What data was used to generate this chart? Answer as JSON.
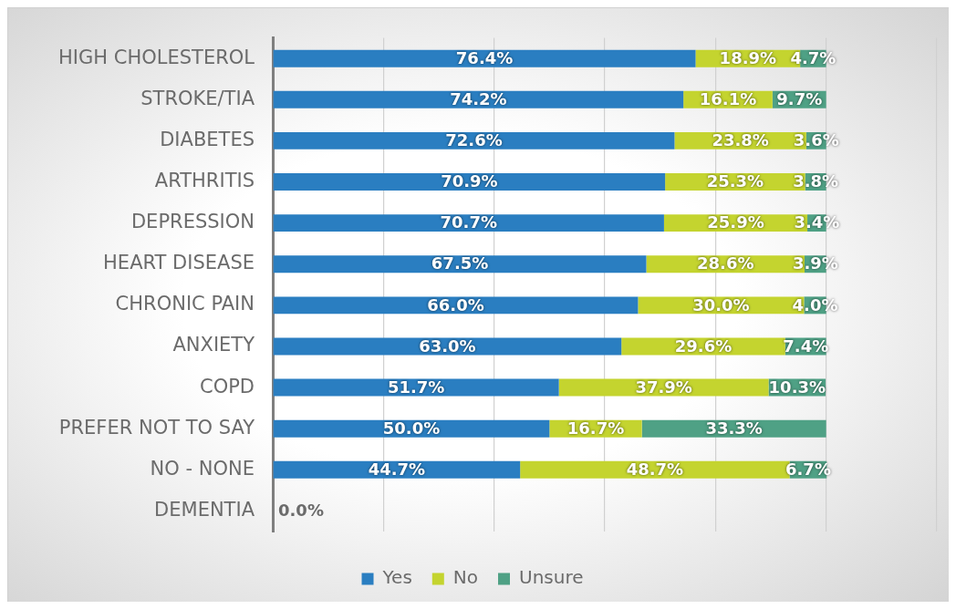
{
  "chart_data": {
    "type": "bar",
    "orientation": "horizontal",
    "stacked": true,
    "categories": [
      "HIGH CHOLESTEROL",
      "STROKE/TIA",
      "DIABETES",
      "ARTHRITIS",
      "DEPRESSION",
      "HEART DISEASE",
      "CHRONIC PAIN",
      "ANXIETY",
      "COPD",
      "PREFER NOT TO SAY",
      "NO - NONE",
      "DEMENTIA"
    ],
    "series": [
      {
        "name": "Yes",
        "color": "#2a7ec1",
        "values": [
          76.4,
          74.2,
          72.6,
          70.9,
          70.7,
          67.5,
          66.0,
          63.0,
          51.7,
          50.0,
          44.7,
          0
        ],
        "value_labels": [
          "76.4%",
          "74.2%",
          "72.6%",
          "70.9%",
          "70.7%",
          "67.5%",
          "66.0%",
          "63.0%",
          "51.7%",
          "50.0%",
          "44.7%",
          "0.0%"
        ]
      },
      {
        "name": "No",
        "color": "#c4d42f",
        "values": [
          18.9,
          16.1,
          23.8,
          25.3,
          25.9,
          28.6,
          30.0,
          29.6,
          37.9,
          16.7,
          48.7,
          null
        ],
        "value_labels": [
          "18.9%",
          "16.1%",
          "23.8%",
          "25.3%",
          "25.9%",
          "28.6%",
          "30.0%",
          "29.6%",
          "37.9%",
          "16.7%",
          "48.7%",
          null
        ]
      },
      {
        "name": "Unsure",
        "color": "#4fa185",
        "values": [
          4.7,
          9.7,
          3.6,
          3.8,
          3.4,
          3.9,
          4.0,
          7.4,
          10.3,
          33.3,
          6.7,
          null
        ],
        "value_labels": [
          "4.7%",
          "9.7%",
          "3.6%",
          "3.8%",
          "3.4%",
          "3.9%",
          "4.0%",
          "7.4%",
          "10.3%",
          "33.3%",
          "6.7%",
          null
        ]
      }
    ],
    "xlim": [
      0,
      120
    ],
    "xticks": [
      {
        "value": 0,
        "label": null
      },
      {
        "value": 20,
        "label": null
      },
      {
        "value": 40,
        "label": null
      },
      {
        "value": 60,
        "label": null
      },
      {
        "value": 80,
        "label": null
      },
      {
        "value": 100,
        "label": null
      },
      {
        "value": 120,
        "label": null
      }
    ],
    "grid": "x",
    "legend": "bottom",
    "tick_labels": "y"
  }
}
